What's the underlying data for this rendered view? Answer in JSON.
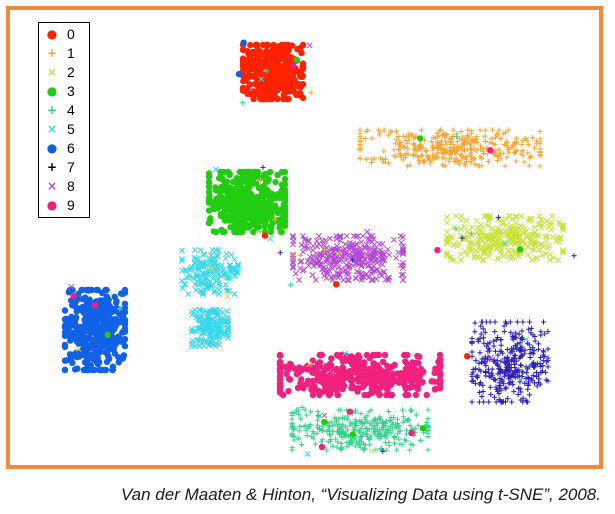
{
  "caption": "Van der Maaten & Hinton, “Visualizing Data using t-SNE”, 2008.",
  "colors": {
    "frame": "#f08a3c"
  },
  "chart_data": {
    "type": "scatter",
    "title": "",
    "xlabel": "",
    "ylabel": "",
    "grid": false,
    "axes_visible": false,
    "legend_position": "top-left",
    "series": [
      {
        "label": "0",
        "marker": "dot",
        "color": "#ff2200",
        "centers": [
          [
            263,
            62
          ]
        ],
        "spread": [
          [
            30,
            27
          ]
        ],
        "count": 420
      },
      {
        "label": "1",
        "marker": "plus",
        "color": "#f7a533",
        "centers": [
          [
            440,
            138
          ]
        ],
        "spread": [
          [
            90,
            18
          ]
        ],
        "count": 360
      },
      {
        "label": "2",
        "marker": "cross",
        "color": "#c8e337",
        "centers": [
          [
            495,
            228
          ]
        ],
        "spread": [
          [
            58,
            22
          ]
        ],
        "count": 300
      },
      {
        "label": "3",
        "marker": "dot",
        "color": "#22cc11",
        "centers": [
          [
            237,
            192
          ]
        ],
        "spread": [
          [
            38,
            30
          ]
        ],
        "count": 420
      },
      {
        "label": "4",
        "marker": "plus",
        "color": "#33d48c",
        "centers": [
          [
            350,
            420
          ]
        ],
        "spread": [
          [
            68,
            20
          ]
        ],
        "count": 330
      },
      {
        "label": "5",
        "marker": "cross",
        "color": "#33d8ee",
        "centers": [
          [
            200,
            262
          ],
          [
            200,
            318
          ]
        ],
        "spread": [
          [
            28,
            22
          ],
          [
            18,
            18
          ]
        ],
        "count": 320
      },
      {
        "label": "6",
        "marker": "dot",
        "color": "#1060e8",
        "centers": [
          [
            85,
            320
          ]
        ],
        "spread": [
          [
            30,
            40
          ]
        ],
        "count": 420
      },
      {
        "label": "7",
        "marker": "plus",
        "color": "#2a1fb8",
        "centers": [
          [
            500,
            352
          ]
        ],
        "spread": [
          [
            38,
            40
          ]
        ],
        "count": 330
      },
      {
        "label": "8",
        "marker": "cross",
        "color": "#b548d8",
        "centers": [
          [
            338,
            248
          ]
        ],
        "spread": [
          [
            55,
            22
          ]
        ],
        "count": 320
      },
      {
        "label": "9",
        "marker": "dot",
        "color": "#f0207f",
        "centers": [
          [
            350,
            365
          ]
        ],
        "spread": [
          [
            80,
            20
          ]
        ],
        "count": 380
      }
    ],
    "outlier_count": 70
  }
}
